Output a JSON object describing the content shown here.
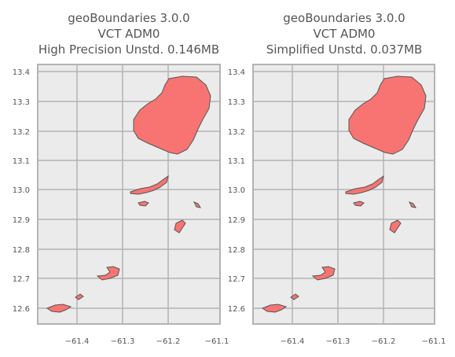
{
  "panels": [
    {
      "title_lines": [
        "geoBoundaries 3.0.0",
        "VCT ADM0",
        "High Precision Unstd. 0.146MB"
      ],
      "x_ticks": [
        "−61.4",
        "−61.3",
        "−61.2",
        "−61.1"
      ],
      "y_ticks": [
        "13.4",
        "13.3",
        "13.2",
        "13.1",
        "13.0",
        "12.9",
        "12.8",
        "12.7",
        "12.6"
      ]
    },
    {
      "title_lines": [
        "geoBoundaries 3.0.0",
        "VCT ADM0",
        "Simplified Unstd. 0.037MB"
      ],
      "x_ticks": [
        "−61.4",
        "−61.3",
        "−61.2",
        "−61.1"
      ],
      "y_ticks": [
        "13.4",
        "13.3",
        "13.2",
        "13.1",
        "13.0",
        "12.9",
        "12.8",
        "12.7",
        "12.6"
      ]
    }
  ],
  "colors": {
    "fill": "#f77472",
    "stroke": "#555555",
    "axes_bg": "#ebebeb",
    "grid": "#b3b3b3"
  }
}
